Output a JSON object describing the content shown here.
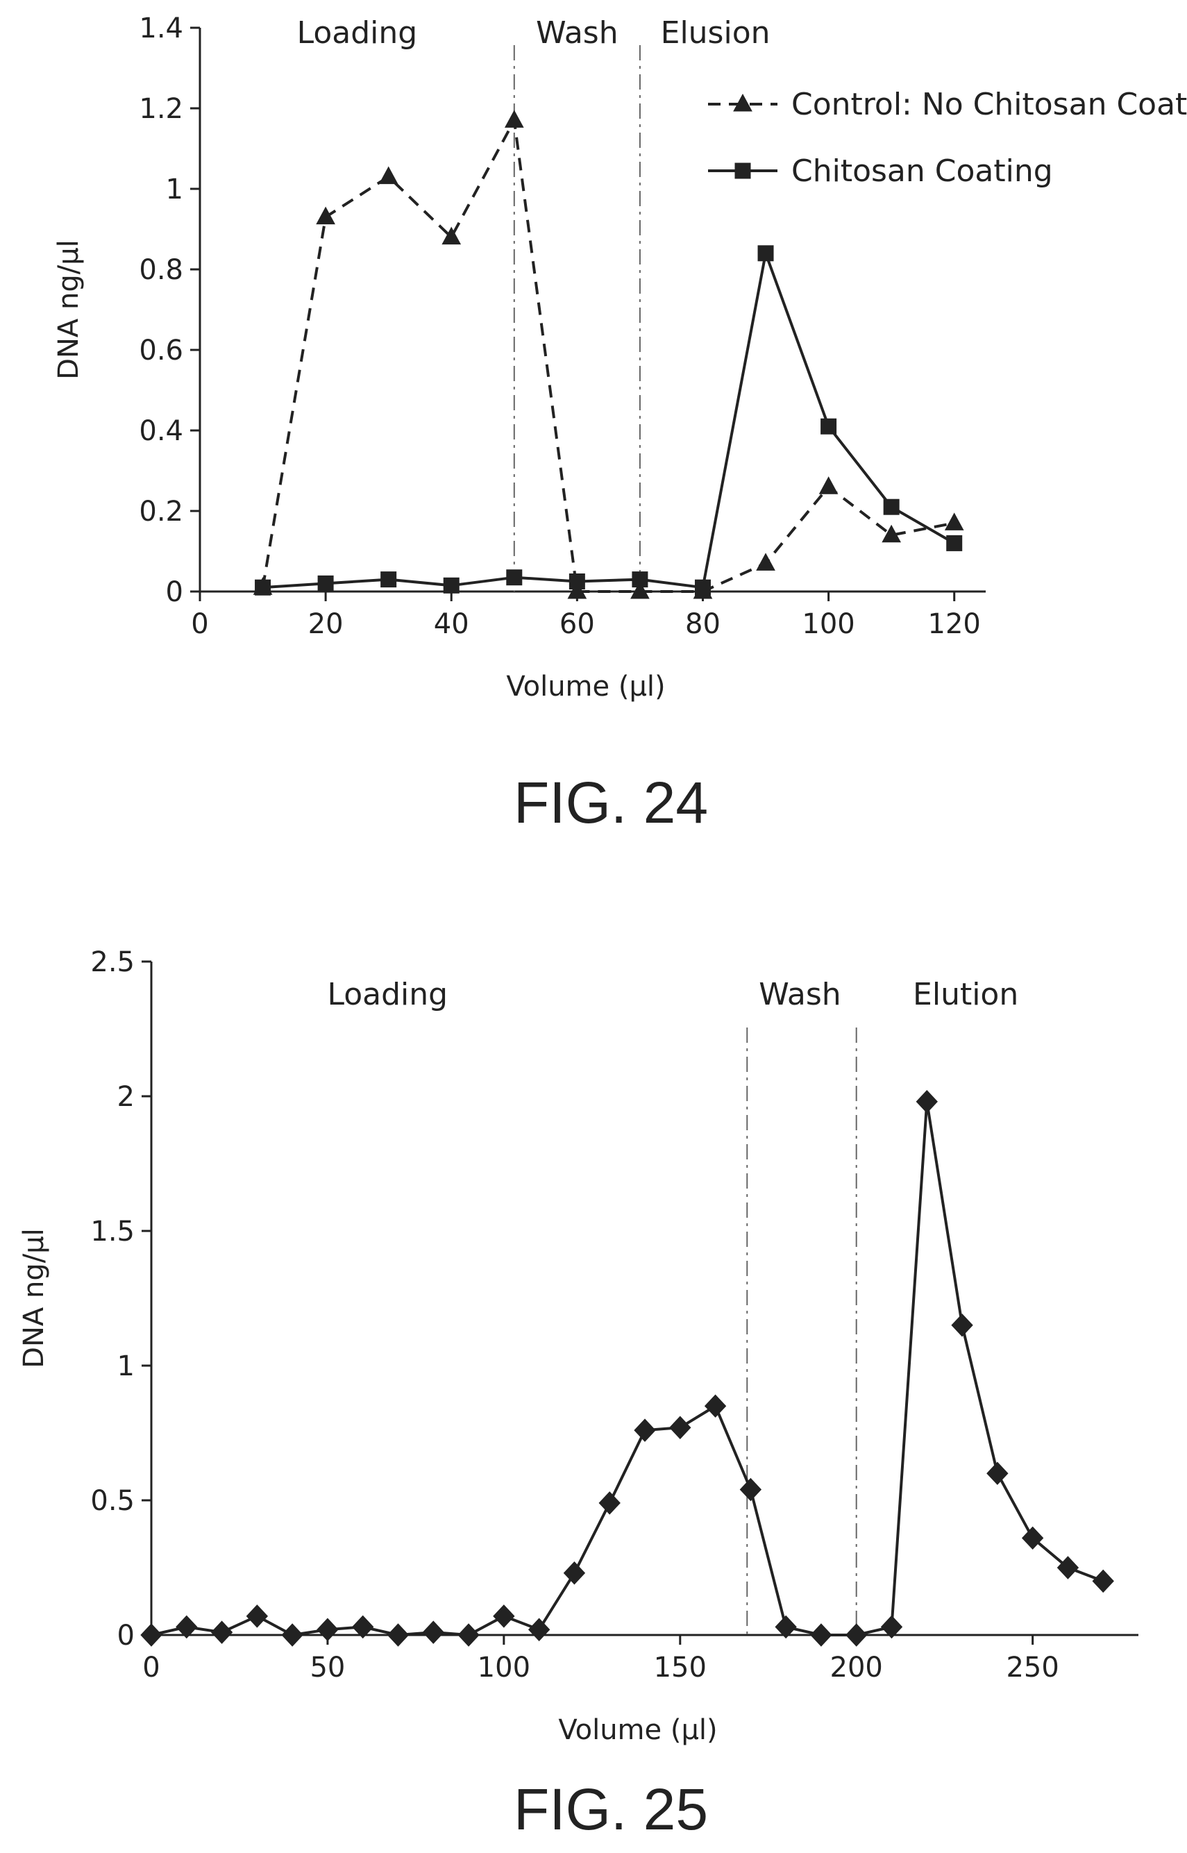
{
  "chart_data": [
    {
      "type": "line",
      "caption": "FIG. 24",
      "title": "",
      "xlabel": "Volume (μl)",
      "ylabel": "DNA ng/μl",
      "xlim": [
        0,
        125
      ],
      "ylim": [
        0,
        1.4
      ],
      "xticks": [
        0,
        20,
        40,
        60,
        80,
        100,
        120
      ],
      "yticks": [
        0,
        0.2,
        0.4,
        0.6,
        0.8,
        1,
        1.2,
        1.4
      ],
      "grid": false,
      "legend_position": "top-right",
      "phases": [
        {
          "label": "Loading",
          "label_x": 25
        },
        {
          "label": "Wash",
          "label_x": 60
        },
        {
          "label": "Elusion",
          "label_x": 82
        }
      ],
      "phase_boundaries": [
        50,
        70
      ],
      "series": [
        {
          "name": "Control: No Chitosan Coating",
          "marker": "triangle",
          "line": "dashed",
          "x": [
            10,
            20,
            30,
            40,
            50,
            60,
            70,
            80,
            90,
            100,
            110,
            120
          ],
          "y": [
            0.01,
            0.93,
            1.03,
            0.88,
            1.17,
            0.0,
            0.0,
            0.0,
            0.07,
            0.26,
            0.14,
            0.17
          ]
        },
        {
          "name": "Chitosan Coating",
          "marker": "square",
          "line": "solid",
          "x": [
            10,
            20,
            30,
            40,
            50,
            60,
            70,
            80,
            90,
            100,
            110,
            120
          ],
          "y": [
            0.01,
            0.02,
            0.03,
            0.015,
            0.035,
            0.025,
            0.03,
            0.01,
            0.84,
            0.41,
            0.21,
            0.12
          ]
        }
      ]
    },
    {
      "type": "line",
      "caption": "FIG. 25",
      "title": "",
      "xlabel": "Volume (μl)",
      "ylabel": "DNA ng/μl",
      "xlim": [
        0,
        280
      ],
      "ylim": [
        0,
        2.5
      ],
      "xticks": [
        0,
        50,
        100,
        150,
        200,
        250
      ],
      "yticks": [
        0,
        0.5,
        1,
        1.5,
        2,
        2.5
      ],
      "grid": false,
      "phases": [
        {
          "label": "Loading",
          "label_x": 67
        },
        {
          "label": "Wash",
          "label_x": 184
        },
        {
          "label": "Elution",
          "label_x": 231
        }
      ],
      "phase_boundaries": [
        169,
        200
      ],
      "series": [
        {
          "name": "",
          "marker": "diamond",
          "line": "solid",
          "x": [
            0,
            10,
            20,
            30,
            40,
            50,
            60,
            70,
            80,
            90,
            100,
            110,
            120,
            130,
            140,
            150,
            160,
            170,
            180,
            190,
            200,
            210,
            220,
            230,
            240,
            250,
            260,
            270
          ],
          "y": [
            0,
            0.03,
            0.01,
            0.07,
            0,
            0.02,
            0.03,
            0,
            0.01,
            0,
            0.07,
            0.02,
            0.23,
            0.49,
            0.76,
            0.77,
            0.85,
            0.54,
            0.03,
            0,
            0,
            0.03,
            1.98,
            1.15,
            0.6,
            0.36,
            0.25,
            0.2
          ]
        }
      ]
    }
  ]
}
